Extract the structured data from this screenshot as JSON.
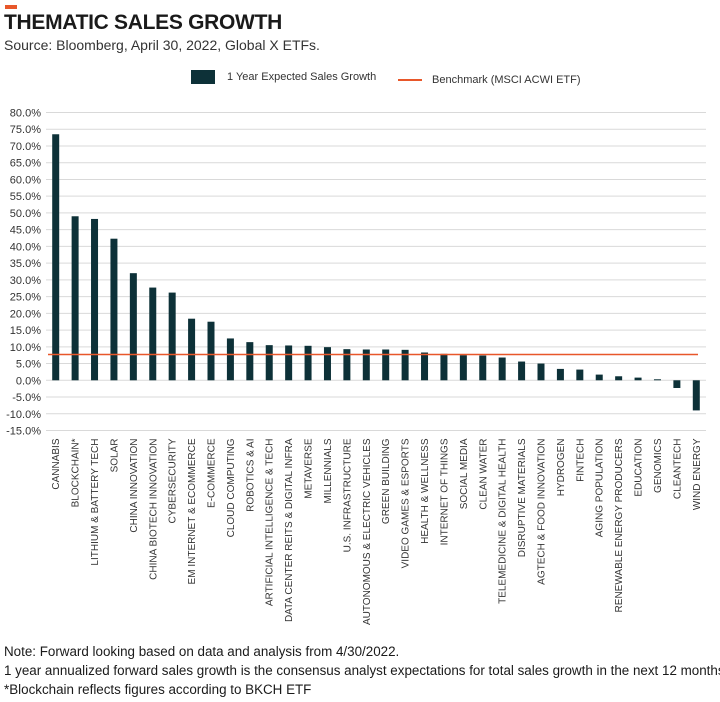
{
  "header": {
    "title": "THEMATIC SALES GROWTH",
    "subtitle": "Source: Bloomberg, April 30, 2022, Global X ETFs."
  },
  "legend": {
    "bar_label": "1 Year Expected Sales Growth",
    "line_label": "Benchmark (MSCI ACWI ETF)"
  },
  "notes": [
    "Note: Forward looking based on data and analysis from 4/30/2022.",
    "1 year annualized forward sales growth is the consensus analyst expectations for total sales growth in the next 12 months.",
    "*Blockchain reflects figures according to BKCH ETF"
  ],
  "colors": {
    "bar": "#0d3138",
    "benchmark": "#e8572a",
    "accent": "#e8572a",
    "grid": "#d9d9d9"
  },
  "chart_data": {
    "type": "bar",
    "title": "THEMATIC SALES GROWTH",
    "xlabel": "",
    "ylabel": "",
    "ylim": [
      -15,
      80
    ],
    "yticks": [
      80,
      75,
      70,
      65,
      60,
      55,
      50,
      45,
      40,
      35,
      30,
      25,
      20,
      15,
      10,
      5,
      0,
      -5,
      -10,
      -15
    ],
    "ytick_labels": [
      "80.0%",
      "75.0%",
      "70.0%",
      "65.0%",
      "60.0%",
      "55.0%",
      "50.0%",
      "45.0%",
      "40.0%",
      "35.0%",
      "30.0%",
      "25.0%",
      "20.0%",
      "15.0%",
      "10.0%",
      "5.0%",
      "0.0%",
      "-5.0%",
      "-10.0%",
      "-15.0%"
    ],
    "grid": true,
    "legend_position": "top",
    "categories": [
      "CANNABIS",
      "BLOCKCHAIN*",
      "LITHIUM & BATTERY TECH",
      "SOLAR",
      "CHINA INNOVATION",
      "CHINA BIOTECH INNOVATION",
      "CYBERSECURITY",
      "EM INTERNET & ECOMMERCE",
      "E-COMMERCE",
      "CLOUD COMPUTING",
      "ROBOTICS & AI",
      "ARTIFICIAL INTELLIGENCE & TECH",
      "DATA CENTER REITS & DIGITAL INFRA",
      "METAVERSE",
      "MILLENNIALS",
      "U.S. INFRASTRUCTURE",
      "AUTONOMOUS & ELECTRIC VEHICLES",
      "GREEN BUILDING",
      "VIDEO GAMES & ESPORTS",
      "HEALTH & WELLNESS",
      "INTERNET OF THINGS",
      "SOCIAL MEDIA",
      "CLEAN WATER",
      "TELEMEDICINE & DIGITAL HEALTH",
      "DISRUPTIVE MATERIALS",
      "AGTECH & FOOD INNOVATION",
      "HYDROGEN",
      "FINTECH",
      "AGING POPULATION",
      "RENEWABLE ENERGY PRODUCERS",
      "EDUCATION",
      "GENOMICS",
      "CLEANTECH",
      "WIND ENERGY"
    ],
    "series": [
      {
        "name": "1 Year Expected Sales Growth",
        "values": [
          73.5,
          49.0,
          48.2,
          42.3,
          32.0,
          27.7,
          26.2,
          18.4,
          17.5,
          12.5,
          11.4,
          10.5,
          10.4,
          10.3,
          9.9,
          9.3,
          9.2,
          9.2,
          9.1,
          8.3,
          7.9,
          7.5,
          7.4,
          6.8,
          5.6,
          5.0,
          3.4,
          3.2,
          1.7,
          1.2,
          0.8,
          0.3,
          -2.3,
          -9.0
        ]
      }
    ],
    "benchmark": {
      "name": "Benchmark (MSCI ACWI ETF)",
      "value": 7.7
    }
  }
}
